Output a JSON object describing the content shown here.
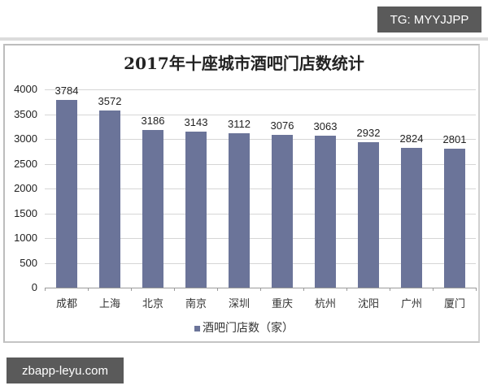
{
  "watermarks": {
    "top_right": "TG: MYYJJPP",
    "bottom_left": "zbapp-leyu.com"
  },
  "colors": {
    "bar": "#6b7499"
  },
  "chart_data": {
    "type": "bar",
    "title": "2017年十座城市酒吧门店数统计",
    "categories": [
      "成都",
      "上海",
      "北京",
      "南京",
      "深圳",
      "重庆",
      "杭州",
      "沈阳",
      "广州",
      "厦门"
    ],
    "series": [
      {
        "name": "酒吧门店数（家）",
        "values": [
          3784,
          3572,
          3186,
          3143,
          3112,
          3076,
          3063,
          2932,
          2824,
          2801
        ]
      }
    ],
    "values": [
      3784,
      3572,
      3186,
      3143,
      3112,
      3076,
      3063,
      2932,
      2824,
      2801
    ],
    "xlabel": "",
    "ylabel": "",
    "ylim": [
      0,
      4000
    ],
    "yticks": [
      0,
      500,
      1000,
      1500,
      2000,
      2500,
      3000,
      3500,
      4000
    ],
    "grid": true,
    "legend_position": "bottom",
    "data_labels": true
  }
}
